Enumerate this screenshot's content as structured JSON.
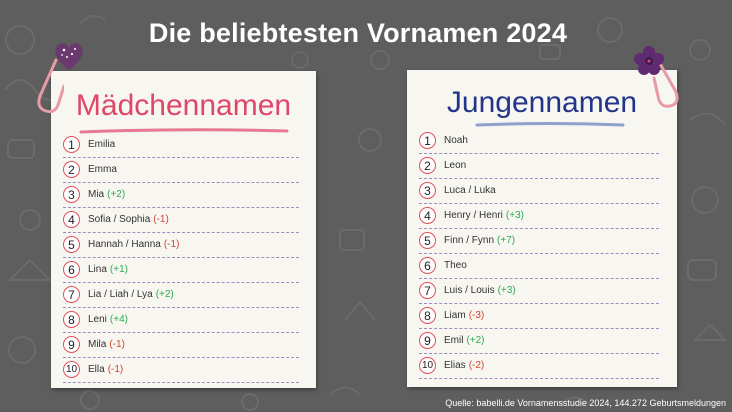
{
  "title": "Die beliebtesten Vornamen 2024",
  "colors": {
    "girls_accent": "#e0456a",
    "boys_accent": "#23358a",
    "up": "#2fa84f",
    "down": "#d0442f"
  },
  "girls": {
    "heading": "Mädchennamen",
    "items": [
      {
        "rank": "1",
        "name": "Emilia",
        "change": ""
      },
      {
        "rank": "2",
        "name": "Emma",
        "change": ""
      },
      {
        "rank": "3",
        "name": "Mia",
        "change": "(+2)"
      },
      {
        "rank": "4",
        "name": "Sofia / Sophia",
        "change": "(-1)"
      },
      {
        "rank": "5",
        "name": "Hannah / Hanna",
        "change": "(-1)"
      },
      {
        "rank": "6",
        "name": "Lina",
        "change": "(+1)"
      },
      {
        "rank": "7",
        "name": "Lia / Liah / Lya",
        "change": "(+2)"
      },
      {
        "rank": "8",
        "name": "Leni",
        "change": "(+4)"
      },
      {
        "rank": "9",
        "name": "Mila",
        "change": "(-1)"
      },
      {
        "rank": "10",
        "name": "Ella",
        "change": "(-1)"
      }
    ]
  },
  "boys": {
    "heading": "Jungennamen",
    "items": [
      {
        "rank": "1",
        "name": "Noah",
        "change": ""
      },
      {
        "rank": "2",
        "name": "Leon",
        "change": ""
      },
      {
        "rank": "3",
        "name": "Luca / Luka",
        "change": ""
      },
      {
        "rank": "4",
        "name": "Henry / Henri",
        "change": "(+3)"
      },
      {
        "rank": "5",
        "name": "Finn / Fynn",
        "change": "(+7)"
      },
      {
        "rank": "6",
        "name": "Theo",
        "change": ""
      },
      {
        "rank": "7",
        "name": "Luis / Louis",
        "change": "(+3)"
      },
      {
        "rank": "8",
        "name": "Liam",
        "change": "(-3)"
      },
      {
        "rank": "9",
        "name": "Emil",
        "change": "(+2)"
      },
      {
        "rank": "10",
        "name": "Elias",
        "change": "(-2)"
      }
    ]
  },
  "decorations": {
    "left": "heart-sticker-icon",
    "right": "flower-sticker-icon",
    "clips": "paperclip-icon"
  },
  "source": "Quelle: babelli.de Vornamensstudie 2024, 144.272 Geburtsmeldungen"
}
